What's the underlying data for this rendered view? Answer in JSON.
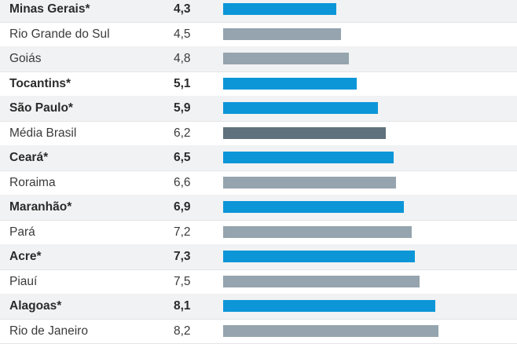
{
  "chart_data": {
    "type": "bar",
    "orientation": "horizontal",
    "title": "",
    "xlabel": "",
    "ylabel": "",
    "xlim": [
      0,
      11.2
    ],
    "colors": {
      "highlight": "#0c96d8",
      "average": "#5f717c",
      "other": "#95a4ae"
    },
    "rows": [
      {
        "label": "Minas Gerais*",
        "value_text": "4,3",
        "value": 4.3,
        "kind": "highlight"
      },
      {
        "label": "Rio Grande do Sul",
        "value_text": "4,5",
        "value": 4.5,
        "kind": "other"
      },
      {
        "label": "Goiás",
        "value_text": "4,8",
        "value": 4.8,
        "kind": "other"
      },
      {
        "label": "Tocantins*",
        "value_text": "5,1",
        "value": 5.1,
        "kind": "highlight"
      },
      {
        "label": "São Paulo*",
        "value_text": "5,9",
        "value": 5.9,
        "kind": "highlight"
      },
      {
        "label": "Média Brasil",
        "value_text": "6,2",
        "value": 6.2,
        "kind": "average"
      },
      {
        "label": "Ceará*",
        "value_text": "6,5",
        "value": 6.5,
        "kind": "highlight"
      },
      {
        "label": "Roraima",
        "value_text": "6,6",
        "value": 6.6,
        "kind": "other"
      },
      {
        "label": "Maranhão*",
        "value_text": "6,9",
        "value": 6.9,
        "kind": "highlight"
      },
      {
        "label": "Pará",
        "value_text": "7,2",
        "value": 7.2,
        "kind": "other"
      },
      {
        "label": "Acre*",
        "value_text": "7,3",
        "value": 7.3,
        "kind": "highlight"
      },
      {
        "label": "Piauí",
        "value_text": "7,5",
        "value": 7.5,
        "kind": "other"
      },
      {
        "label": "Alagoas*",
        "value_text": "8,1",
        "value": 8.1,
        "kind": "highlight"
      },
      {
        "label": "Rio de Janeiro",
        "value_text": "8,2",
        "value": 8.2,
        "kind": "other"
      }
    ]
  }
}
